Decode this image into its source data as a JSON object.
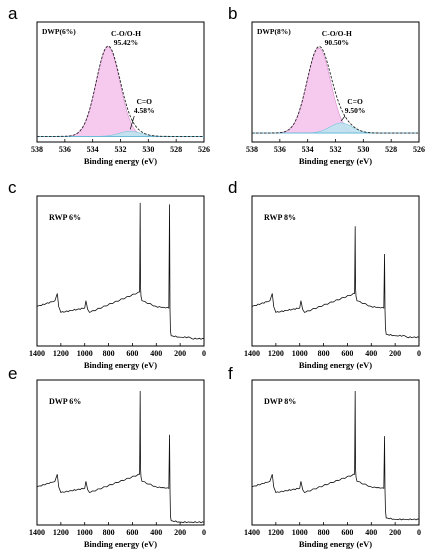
{
  "chart_data": [
    {
      "panel": "a",
      "type": "area",
      "sample_label": "DWP(6%)",
      "xlabel": "Binding energy (eV)",
      "xlim": [
        538,
        526
      ],
      "xticks": [
        "538",
        "536",
        "534",
        "532",
        "530",
        "528",
        "526"
      ],
      "baseline": 0.05,
      "peaks": [
        {
          "name": "C-O/O-H",
          "percent": "95.42%",
          "center": 532.9,
          "height": 0.8,
          "sigma": 0.85,
          "color": "#f5c4ec"
        },
        {
          "name": "C=O",
          "percent": "4.58%",
          "center": 531.3,
          "height": 0.045,
          "sigma": 0.8,
          "color": "#bfe3ef"
        }
      ]
    },
    {
      "panel": "b",
      "type": "area",
      "sample_label": "DWP(8%)",
      "xlabel": "Binding energy (eV)",
      "xlim": [
        538,
        526
      ],
      "xticks": [
        "538",
        "536",
        "534",
        "532",
        "530",
        "528",
        "526"
      ],
      "baseline": 0.08,
      "peaks": [
        {
          "name": "C-O/O-H",
          "percent": "90.50%",
          "center": 533.2,
          "height": 0.76,
          "sigma": 0.85,
          "color": "#f5c4ec"
        },
        {
          "name": "C=O",
          "percent": "9.50%",
          "center": 531.6,
          "height": 0.09,
          "sigma": 0.8,
          "color": "#bfe3ef"
        }
      ]
    },
    {
      "panel": "c",
      "type": "line",
      "sample_label": "RWP 6%",
      "xlabel": "Binding energy (eV)",
      "xlim": [
        1400,
        0
      ],
      "xticks": [
        "1400",
        "1200",
        "1000",
        "800",
        "600",
        "400",
        "200",
        "0"
      ],
      "spectrum_x": [
        1400,
        1250,
        1230,
        1218,
        1200,
        1000,
        990,
        975,
        960,
        540,
        535,
        532,
        528,
        520,
        400,
        295,
        289,
        285,
        281,
        275,
        200,
        120,
        100,
        0
      ],
      "spectrum_y": [
        0.27,
        0.31,
        0.36,
        0.27,
        0.23,
        0.26,
        0.31,
        0.25,
        0.23,
        0.37,
        0.98,
        0.4,
        0.34,
        0.31,
        0.27,
        0.26,
        0.97,
        0.25,
        0.1,
        0.07,
        0.06,
        0.06,
        0.05,
        0.05
      ]
    },
    {
      "panel": "d",
      "type": "line",
      "sample_label": "RWP 8%",
      "xlabel": "Binding energy (eV)",
      "xlim": [
        1400,
        0
      ],
      "xticks": [
        "1400",
        "1200",
        "1000",
        "800",
        "600",
        "400",
        "200",
        "0"
      ],
      "spectrum_x": [
        1400,
        1250,
        1230,
        1218,
        1200,
        1000,
        990,
        975,
        960,
        540,
        535,
        532,
        528,
        520,
        400,
        295,
        289,
        285,
        281,
        275,
        200,
        120,
        100,
        0
      ],
      "spectrum_y": [
        0.27,
        0.31,
        0.36,
        0.27,
        0.23,
        0.26,
        0.31,
        0.25,
        0.23,
        0.36,
        0.82,
        0.4,
        0.34,
        0.31,
        0.27,
        0.26,
        0.63,
        0.25,
        0.12,
        0.08,
        0.07,
        0.07,
        0.06,
        0.06
      ]
    },
    {
      "panel": "e",
      "type": "line",
      "sample_label": "DWP 6%",
      "xlabel": "Binding energy (eV)",
      "xlim": [
        1400,
        0
      ],
      "xticks": [
        "1400",
        "1200",
        "1000",
        "800",
        "600",
        "400",
        "200",
        "0"
      ],
      "spectrum_x": [
        1400,
        1250,
        1230,
        1218,
        1200,
        1000,
        990,
        975,
        960,
        540,
        535,
        532,
        528,
        520,
        400,
        295,
        289,
        285,
        281,
        275,
        200,
        120,
        100,
        0
      ],
      "spectrum_y": [
        0.27,
        0.31,
        0.36,
        0.27,
        0.23,
        0.26,
        0.31,
        0.25,
        0.23,
        0.36,
        0.95,
        0.4,
        0.34,
        0.31,
        0.27,
        0.26,
        0.64,
        0.25,
        0.06,
        0.03,
        0.02,
        0.02,
        0.02,
        0.02
      ]
    },
    {
      "panel": "f",
      "type": "line",
      "sample_label": "DWP 8%",
      "xlabel": "Binding energy (eV)",
      "xlim": [
        1400,
        0
      ],
      "xticks": [
        "1400",
        "1200",
        "1000",
        "800",
        "600",
        "400",
        "200",
        "0"
      ],
      "spectrum_x": [
        1400,
        1250,
        1230,
        1218,
        1200,
        1000,
        990,
        975,
        960,
        540,
        535,
        532,
        528,
        520,
        400,
        295,
        289,
        285,
        281,
        275,
        200,
        120,
        100,
        0
      ],
      "spectrum_y": [
        0.27,
        0.31,
        0.36,
        0.27,
        0.23,
        0.26,
        0.31,
        0.25,
        0.23,
        0.36,
        0.95,
        0.4,
        0.34,
        0.31,
        0.27,
        0.26,
        0.63,
        0.25,
        0.1,
        0.05,
        0.04,
        0.04,
        0.04,
        0.04
      ]
    }
  ]
}
